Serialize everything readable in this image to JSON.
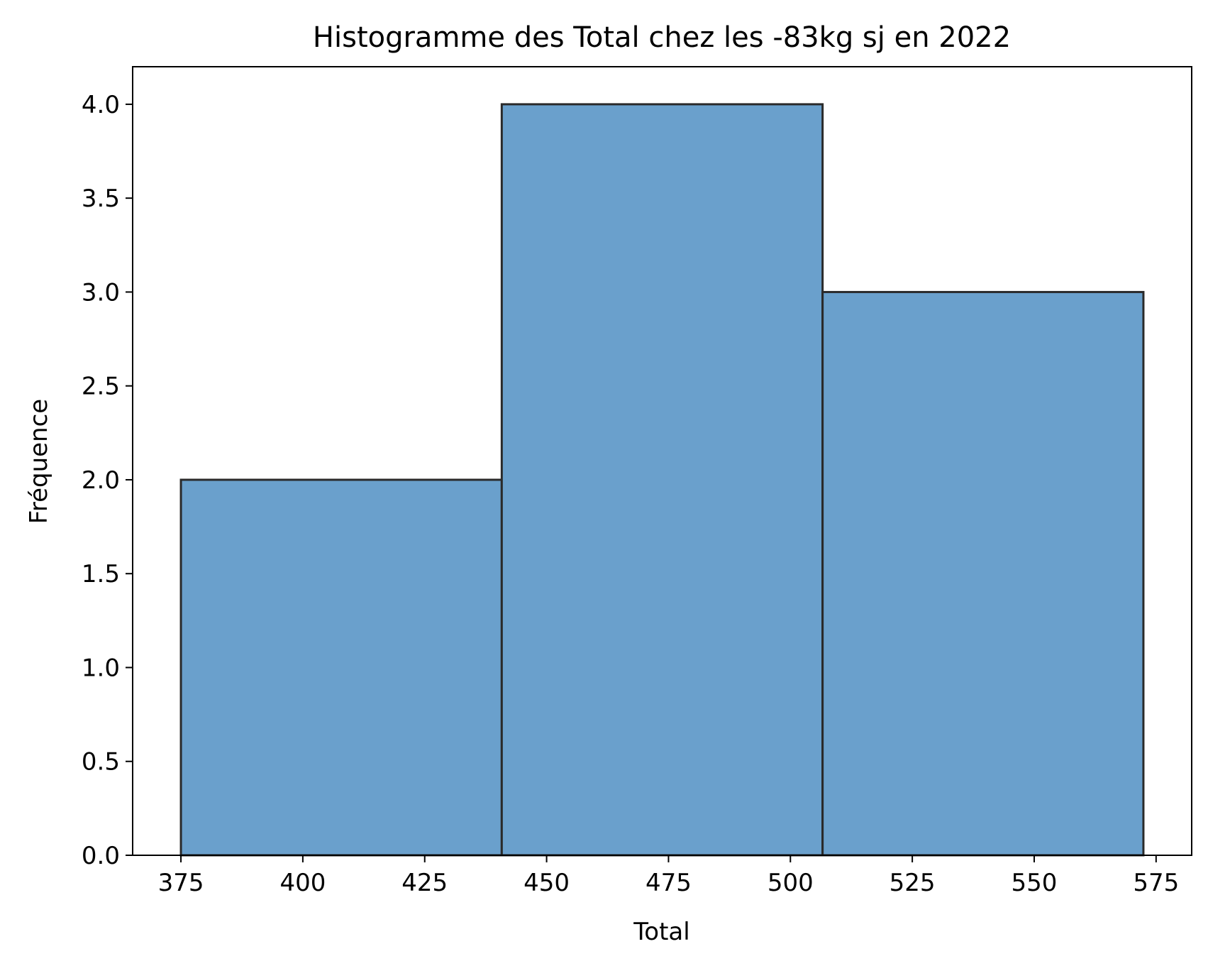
{
  "chart_data": {
    "type": "bar",
    "subtype": "histogram",
    "title": "Histogramme des Total chez les -83kg sj en 2022",
    "xlabel": "Total",
    "ylabel": "Fréquence",
    "bins": [
      {
        "start": 375,
        "end": 440.8,
        "count": 2
      },
      {
        "start": 440.8,
        "end": 506.6,
        "count": 4
      },
      {
        "start": 506.6,
        "end": 572.4,
        "count": 3
      }
    ],
    "xlim": [
      365.1,
      582.3
    ],
    "ylim": [
      0,
      4.2
    ],
    "xticks": [
      375,
      400,
      425,
      450,
      475,
      500,
      525,
      550,
      575
    ],
    "yticks": [
      "0.0",
      "0.5",
      "1.0",
      "1.5",
      "2.0",
      "2.5",
      "3.0",
      "3.5",
      "4.0"
    ],
    "grid": false,
    "legend": "none",
    "bar_color": "#6aa0cc",
    "edge_color": "#2a2a2a"
  }
}
